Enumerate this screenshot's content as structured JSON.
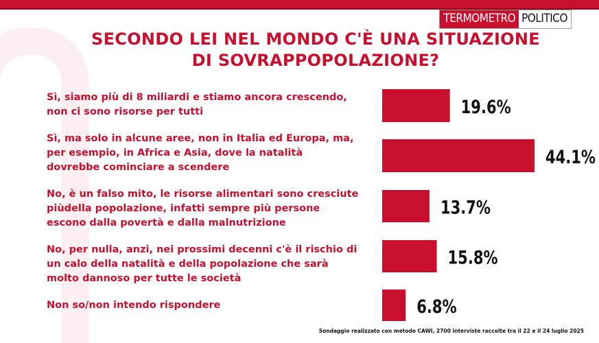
{
  "logo": {
    "part_a": "TERMOMETRO",
    "part_b": "POLITICO"
  },
  "title_lines": [
    "SECONDO LEI NEL MONDO C'È UNA SITUAZIONE",
    "DI SOVRAPPOPOLAZIONE?"
  ],
  "chart_data": {
    "type": "bar",
    "orientation": "horizontal",
    "title": "SECONDO LEI NEL MONDO C'È UNA SITUAZIONE DI SOVRAPPOPOLAZIONE?",
    "categories": [
      "Sì, siamo più di 8 miliardi e stiamo ancora crescendo, non ci sono risorse per tutti",
      "Sì, ma solo in alcune aree, non in Italia ed Europa, ma, per esempio, in Africa e Asia, dove la natalità dovrebbe cominciare a scendere",
      "No, è un falso mito, le risorse alimentari sono cresciute piùdella popolazione, infatti sempre più persone escono dalla povertà e dalla malnutrizione",
      "No, per nulla, anzi, nei prossimi decenni c'è il rischio di un calo della natalità e della popolazione che sarà molto dannoso per tutte le società",
      "Non so/non intendo rispondere"
    ],
    "category_lines": [
      [
        "Sì, siamo più di 8 miliardi e stiamo ancora crescendo,",
        "non ci sono risorse per tutti"
      ],
      [
        "Sì, ma solo in alcune aree, non in Italia ed Europa, ma,",
        "per esempio, in Africa e Asia, dove la natalità",
        "dovrebbe cominciare a scendere"
      ],
      [
        "No, è un falso mito, le risorse alimentari sono cresciute",
        "piùdella popolazione, infatti sempre più persone",
        "escono dalla povertà e dalla malnutrizione"
      ],
      [
        "No, per nulla, anzi, nei prossimi decenni c'è il rischio di",
        "un calo della natalità e della popolazione che sarà",
        "molto dannoso per tutte le società"
      ],
      [
        "Non so/non intendo rispondere"
      ]
    ],
    "values": [
      19.6,
      44.1,
      13.7,
      15.8,
      6.8
    ],
    "value_labels": [
      "19.6%",
      "44.1%",
      "13.7%",
      "15.8%",
      "6.8%"
    ],
    "bar_color": "#c8102e"
  },
  "footnote": "Sondaggio realizzato con metodo CAWI, 2700 interviste raccolte tra il 22 e il 24 luglio 2025"
}
